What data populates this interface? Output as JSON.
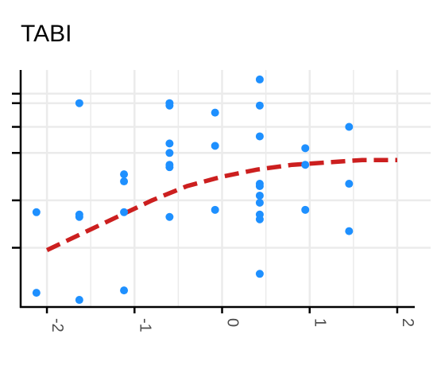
{
  "chart_data": {
    "type": "scatter",
    "title": "TABI",
    "xlabel": "",
    "ylabel": "",
    "xlim": [
      -2.3,
      2.2
    ],
    "ylim": [
      0,
      1
    ],
    "x_ticks": [
      -2,
      -1,
      0,
      1,
      2
    ],
    "x_tick_labels": [
      "-2",
      "-1",
      "0",
      "1",
      "2"
    ],
    "y_ticks": [
      0.25,
      0.45,
      0.65,
      0.76,
      0.86,
      0.9
    ],
    "grid": true,
    "colors": {
      "points": "#1e90ff",
      "curve": "#cc1f1f",
      "grid": "#ebebeb",
      "axis": "#000000"
    },
    "series": [
      {
        "type": "scatter",
        "values": [
          {
            "x": -2.12,
            "y": 0.06
          },
          {
            "x": -2.12,
            "y": 0.4
          },
          {
            "x": -1.63,
            "y": 0.86
          },
          {
            "x": -1.63,
            "y": 0.39
          },
          {
            "x": -1.63,
            "y": 0.38
          },
          {
            "x": -1.63,
            "y": 0.03
          },
          {
            "x": -1.12,
            "y": 0.56
          },
          {
            "x": -1.12,
            "y": 0.53
          },
          {
            "x": -1.12,
            "y": 0.4
          },
          {
            "x": -1.12,
            "y": 0.07
          },
          {
            "x": -0.6,
            "y": 0.86
          },
          {
            "x": -0.6,
            "y": 0.85
          },
          {
            "x": -0.6,
            "y": 0.69
          },
          {
            "x": -0.6,
            "y": 0.65
          },
          {
            "x": -0.6,
            "y": 0.6
          },
          {
            "x": -0.6,
            "y": 0.59
          },
          {
            "x": -0.6,
            "y": 0.38
          },
          {
            "x": -0.08,
            "y": 0.82
          },
          {
            "x": -0.08,
            "y": 0.68
          },
          {
            "x": -0.08,
            "y": 0.41
          },
          {
            "x": 0.43,
            "y": 0.96
          },
          {
            "x": 0.43,
            "y": 0.85
          },
          {
            "x": 0.43,
            "y": 0.72
          },
          {
            "x": 0.43,
            "y": 0.52
          },
          {
            "x": 0.43,
            "y": 0.51
          },
          {
            "x": 0.43,
            "y": 0.47
          },
          {
            "x": 0.43,
            "y": 0.44
          },
          {
            "x": 0.43,
            "y": 0.39
          },
          {
            "x": 0.43,
            "y": 0.37
          },
          {
            "x": 0.43,
            "y": 0.14
          },
          {
            "x": 0.95,
            "y": 0.67
          },
          {
            "x": 0.95,
            "y": 0.6
          },
          {
            "x": 0.95,
            "y": 0.41
          },
          {
            "x": 1.45,
            "y": 0.76
          },
          {
            "x": 1.45,
            "y": 0.52
          },
          {
            "x": 1.45,
            "y": 0.32
          }
        ]
      },
      {
        "type": "line",
        "style": "dashed",
        "values": [
          {
            "x": -2.0,
            "y": 0.24
          },
          {
            "x": -1.6,
            "y": 0.31
          },
          {
            "x": -1.2,
            "y": 0.38
          },
          {
            "x": -0.8,
            "y": 0.45
          },
          {
            "x": -0.4,
            "y": 0.51
          },
          {
            "x": 0.0,
            "y": 0.55
          },
          {
            "x": 0.4,
            "y": 0.58
          },
          {
            "x": 0.8,
            "y": 0.6
          },
          {
            "x": 1.2,
            "y": 0.61
          },
          {
            "x": 1.6,
            "y": 0.62
          },
          {
            "x": 2.0,
            "y": 0.62
          }
        ]
      }
    ]
  }
}
